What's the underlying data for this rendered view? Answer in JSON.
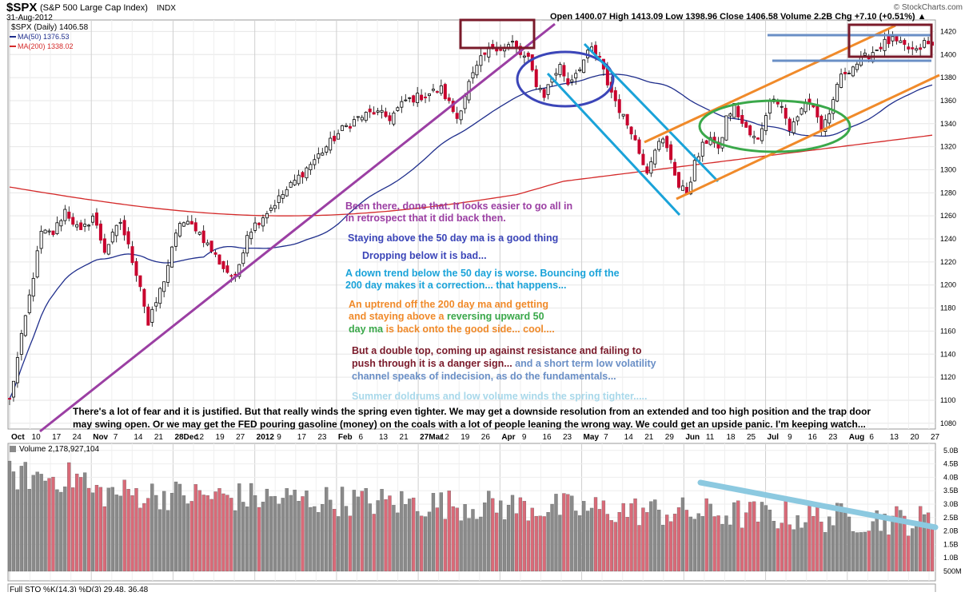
{
  "header": {
    "symbol": "$SPX",
    "name": "(S&P 500 Large Cap Index)",
    "exchange": "INDX",
    "date": "31-Aug-2012",
    "watermark": "© StockCharts.com",
    "ohlc_text": "Open 1400.07 High 1413.09 Low 1398.96 Close 1406.58 Volume 2.2B Chg +7.10 (+0.51%) ▲"
  },
  "legend": {
    "price": "$SPX (Daily) 1406.58",
    "ma50": "MA(50) 1376.53",
    "ma200": "MA(200) 1338.02",
    "volume": "Volume 2,178,927,104",
    "sto": "Full STO %K(14,3) %D(3) 29.48, 36.48"
  },
  "colors": {
    "up_candle": "#000000",
    "down_candle": "#c8002d",
    "ma50": "#1f2e8c",
    "ma200": "#d42a2a",
    "volume_up": "#8a8a8a",
    "volume_down": "#d96a78",
    "purple": "#9b3fa3",
    "blue_ellipse": "#3b45b8",
    "cyan": "#1aa3d9",
    "orange": "#f08a2a",
    "green": "#3aa84a",
    "maroon": "#7a1a2a",
    "steel": "#6a8fc6",
    "lightblue": "#8cc9e0"
  },
  "annotations": {
    "a1": "Been there, done that. It looks easier to go all in",
    "a2": "in retrospect that it did back then.",
    "a3": "Staying above the 50 day ma is a good thing",
    "a4": "Dropping below it is bad...",
    "a5": "A down trend below the 50 day is worse. Bouncing off the",
    "a6": "200 day makes it a correction... that happens...",
    "a7": "An uptrend off the 200 day ma and getting",
    "a8a": "and  staying above a ",
    "a8b": "reversing upward 50",
    "a9a": "day ma",
    "a9b": " is back onto the good side... cool....",
    "a10": "But a double top, coming up against resistance and failing to",
    "a11a": "push through it is a danger sign...",
    "a11b": " and a short term low volatility",
    "a12": "channel speaks of indecision, as do the fundamentals...",
    "a13": "Summer doldrums and low volume winds the spring tighter.....",
    "b1": "There's a lot of fear and it is justified. But that really winds the spring even  tighter. We may get a downside resolution from an extended and too high position and the trap door",
    "b2": "may swing open. Or we may get the FED pouring gasoline (money) on the coals with a lot of people leaning the wrong way. We could get an upside panic.  I'm keeping watch..."
  },
  "chart_data": {
    "type": "candlestick",
    "price_axis": {
      "min": 1075,
      "max": 1430,
      "ticks": [
        1080,
        1100,
        1120,
        1140,
        1160,
        1180,
        1200,
        1220,
        1240,
        1260,
        1280,
        1300,
        1320,
        1340,
        1360,
        1380,
        1400,
        1420
      ]
    },
    "volume_axis": {
      "ticks": [
        "500M",
        "1.0B",
        "1.5B",
        "2.0B",
        "2.5B",
        "3.0B",
        "3.5B",
        "4.0B",
        "4.5B",
        "5.0B"
      ]
    },
    "x_axis": {
      "labels": [
        "Oct",
        "10",
        "17",
        "24",
        "Nov",
        "7",
        "14",
        "21",
        "28Dec",
        "12",
        "19",
        "27",
        "2012",
        "9",
        "17",
        "23",
        "Feb",
        "6",
        "13",
        "21",
        "27Mar",
        "12",
        "19",
        "26",
        "Apr",
        "9",
        "16",
        "23",
        "May",
        "7",
        "14",
        "21",
        "29",
        "Jun",
        "11",
        "18",
        "25",
        "Jul",
        "9",
        "16",
        "23",
        "Aug",
        "6",
        "13",
        "20",
        "27"
      ]
    },
    "grid": true,
    "close_waypoints": [
      [
        0,
        1100
      ],
      [
        5,
        1190
      ],
      [
        8,
        1245
      ],
      [
        11,
        1245
      ],
      [
        14,
        1265
      ],
      [
        18,
        1245
      ],
      [
        21,
        1260
      ],
      [
        24,
        1230
      ],
      [
        28,
        1255
      ],
      [
        33,
        1200
      ],
      [
        35,
        1165
      ],
      [
        39,
        1205
      ],
      [
        43,
        1255
      ],
      [
        47,
        1250
      ],
      [
        51,
        1230
      ],
      [
        54,
        1215
      ],
      [
        57,
        1205
      ],
      [
        60,
        1245
      ],
      [
        64,
        1260
      ],
      [
        68,
        1275
      ],
      [
        72,
        1290
      ],
      [
        76,
        1305
      ],
      [
        80,
        1320
      ],
      [
        84,
        1335
      ],
      [
        88,
        1345
      ],
      [
        92,
        1350
      ],
      [
        96,
        1345
      ],
      [
        100,
        1360
      ],
      [
        105,
        1365
      ],
      [
        109,
        1370
      ],
      [
        113,
        1345
      ],
      [
        116,
        1375
      ],
      [
        119,
        1395
      ],
      [
        122,
        1408
      ],
      [
        125,
        1405
      ],
      [
        127,
        1410
      ],
      [
        129,
        1400
      ],
      [
        131,
        1395
      ],
      [
        133,
        1375
      ],
      [
        135,
        1365
      ],
      [
        137,
        1380
      ],
      [
        139,
        1390
      ],
      [
        141,
        1375
      ],
      [
        143,
        1385
      ],
      [
        145,
        1395
      ],
      [
        147,
        1405
      ],
      [
        149,
        1395
      ],
      [
        151,
        1375
      ],
      [
        153,
        1360
      ],
      [
        155,
        1345
      ],
      [
        157,
        1335
      ],
      [
        159,
        1315
      ],
      [
        161,
        1300
      ],
      [
        163,
        1320
      ],
      [
        165,
        1325
      ],
      [
        167,
        1310
      ],
      [
        169,
        1285
      ],
      [
        171,
        1280
      ],
      [
        173,
        1305
      ],
      [
        175,
        1320
      ],
      [
        177,
        1330
      ],
      [
        179,
        1315
      ],
      [
        181,
        1345
      ],
      [
        183,
        1355
      ],
      [
        185,
        1340
      ],
      [
        187,
        1330
      ],
      [
        189,
        1325
      ],
      [
        191,
        1350
      ],
      [
        193,
        1365
      ],
      [
        195,
        1355
      ],
      [
        197,
        1335
      ],
      [
        199,
        1345
      ],
      [
        201,
        1360
      ],
      [
        203,
        1355
      ],
      [
        205,
        1335
      ],
      [
        207,
        1345
      ],
      [
        209,
        1375
      ],
      [
        211,
        1385
      ],
      [
        213,
        1390
      ],
      [
        215,
        1395
      ],
      [
        217,
        1400
      ],
      [
        219,
        1405
      ],
      [
        221,
        1410
      ],
      [
        223,
        1412
      ],
      [
        225,
        1408
      ],
      [
        227,
        1405
      ],
      [
        229,
        1402
      ],
      [
        231,
        1410
      ],
      [
        233,
        1407
      ]
    ],
    "series": [
      {
        "name": "MA(50)",
        "last": 1376.53
      },
      {
        "name": "MA(200)",
        "last": 1338.02
      }
    ]
  }
}
